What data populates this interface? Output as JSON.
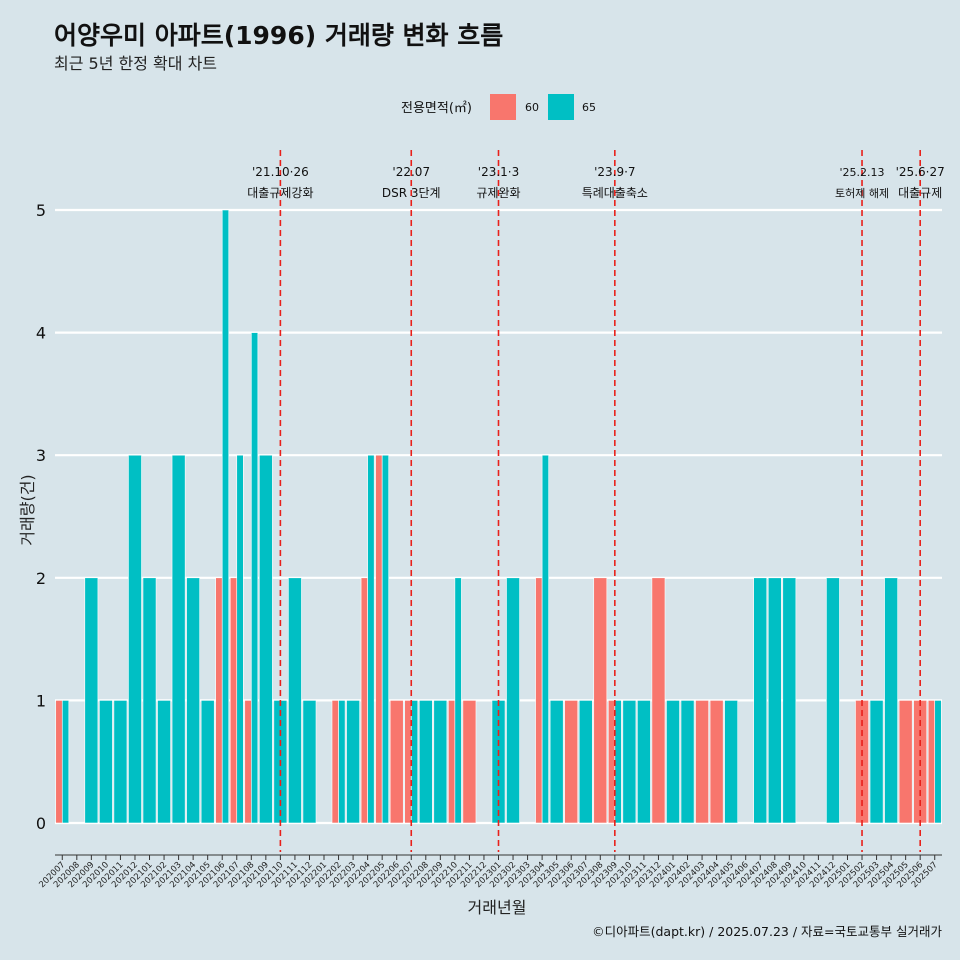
{
  "title": "어양우미 아파트(1996) 거래량 변화 흐름",
  "subtitle": "최근 5년 한정 확대 차트",
  "caption": "©디아파트(dapt.kr) / 2025.07.23 / 자료=국토교통부 실거래가",
  "colors": {
    "background": "#d7e4ea",
    "area60": "#f8766d",
    "area65": "#00bfc4",
    "vline": "#e8201a",
    "grid": "#ffffff"
  },
  "chart_data": {
    "type": "bar",
    "title": "어양우미 아파트(1996) 거래량 변화 흐름",
    "xlabel": "거래년월",
    "ylabel": "거래량(건)",
    "ylim": [
      -0.2,
      5.35
    ],
    "yticks": [
      0,
      1,
      2,
      3,
      4,
      5
    ],
    "legend": {
      "title": "전용면적(㎡)",
      "position": "top",
      "entries": [
        "60",
        "65"
      ]
    },
    "categories": [
      "202007",
      "202008",
      "202009",
      "202010",
      "202011",
      "202012",
      "202101",
      "202102",
      "202103",
      "202104",
      "202105",
      "202106",
      "202107",
      "202108",
      "202109",
      "202110",
      "202111",
      "202112",
      "202201",
      "202202",
      "202203",
      "202204",
      "202205",
      "202206",
      "202207",
      "202208",
      "202209",
      "202210",
      "202211",
      "202212",
      "202301",
      "202302",
      "202303",
      "202304",
      "202305",
      "202306",
      "202307",
      "202308",
      "202309",
      "202310",
      "202311",
      "202312",
      "202401",
      "202402",
      "202403",
      "202404",
      "202405",
      "202406",
      "202407",
      "202408",
      "202409",
      "202410",
      "202411",
      "202412",
      "202501",
      "202502",
      "202503",
      "202504",
      "202505",
      "202506",
      "202507"
    ],
    "series": [
      {
        "name": "60",
        "values": [
          1,
          0,
          0,
          0,
          0,
          0,
          0,
          0,
          0,
          0,
          0,
          2,
          2,
          1,
          0,
          0,
          0,
          0,
          0,
          1,
          0,
          2,
          3,
          1,
          1,
          0,
          0,
          1,
          1,
          0,
          0,
          0,
          0,
          2,
          0,
          1,
          0,
          2,
          1,
          0,
          0,
          2,
          0,
          0,
          1,
          1,
          0,
          0,
          0,
          0,
          0,
          0,
          0,
          0,
          0,
          1,
          0,
          0,
          1,
          1,
          1
        ]
      },
      {
        "name": "65",
        "values": [
          1,
          0,
          2,
          1,
          1,
          3,
          2,
          1,
          3,
          2,
          1,
          5,
          3,
          4,
          3,
          1,
          2,
          1,
          0,
          1,
          1,
          3,
          3,
          0,
          1,
          1,
          1,
          2,
          0,
          0,
          1,
          2,
          0,
          3,
          1,
          0,
          1,
          0,
          1,
          1,
          1,
          0,
          1,
          1,
          0,
          0,
          1,
          0,
          2,
          2,
          2,
          0,
          0,
          2,
          0,
          0,
          1,
          2,
          0,
          0,
          1
        ]
      }
    ],
    "events": [
      {
        "category": "202110",
        "date": "'21.10·26",
        "label": "대출규제강화"
      },
      {
        "category": "202207",
        "date": "'22.07",
        "label": "DSR 3단계"
      },
      {
        "category": "202301",
        "date": "'23.1·3",
        "label": "규제완화"
      },
      {
        "category": "202309",
        "date": "'23.9·7",
        "label": "특례대출축소"
      },
      {
        "category": "202502",
        "date": "'25.2.13",
        "label": "토허제 해제"
      },
      {
        "category": "202506",
        "date": "'25.6·27",
        "label": "대출규제"
      }
    ]
  }
}
